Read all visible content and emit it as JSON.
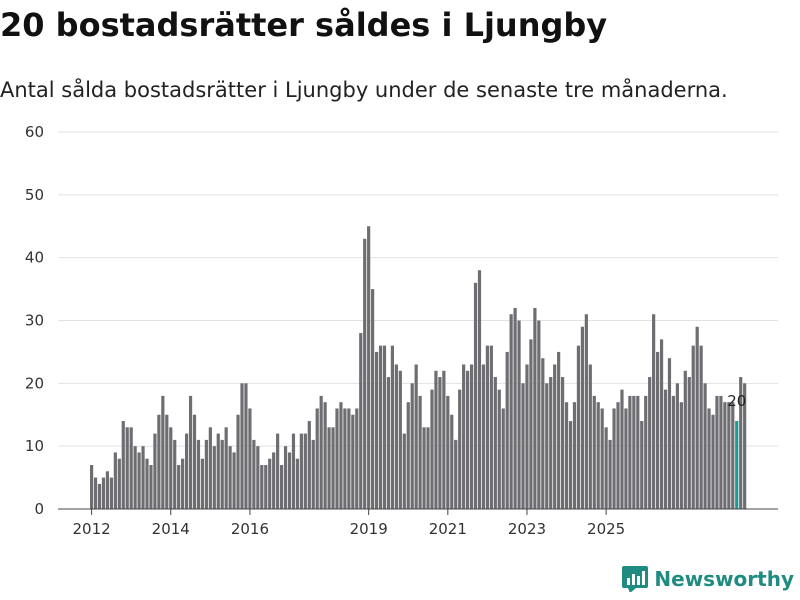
{
  "header": {
    "title": "20 bostadsrätter såldes i Ljungby",
    "subtitle": "Antal sålda bostadsrätter i Ljungby under de senaste tre månaderna."
  },
  "brand": {
    "name": "Newsworthy",
    "icon": "newsworthy-logo-icon"
  },
  "colors": {
    "bar": "#6e6d72",
    "highlight": "#1a9a91",
    "grid": "#e2e2e2",
    "axis": "#444444"
  },
  "chart_data": {
    "type": "bar",
    "title": "20 bostadsrätter såldes i Ljungby",
    "xlabel": "",
    "ylabel": "",
    "ylim": [
      0,
      60
    ],
    "yticks": [
      0,
      10,
      20,
      30,
      40,
      50,
      60
    ],
    "xticks": [
      {
        "label": "2012",
        "index": 0
      },
      {
        "label": "2014",
        "index": 20
      },
      {
        "label": "2016",
        "index": 40
      },
      {
        "label": "2019",
        "index": 70
      },
      {
        "label": "2021",
        "index": 90
      },
      {
        "label": "2023",
        "index": 110
      },
      {
        "label": "2025",
        "index": 130
      }
    ],
    "values": [
      7,
      5,
      4,
      5,
      6,
      5,
      9,
      8,
      14,
      13,
      13,
      10,
      9,
      10,
      8,
      7,
      12,
      15,
      18,
      15,
      13,
      11,
      7,
      8,
      12,
      18,
      15,
      11,
      8,
      11,
      13,
      10,
      12,
      11,
      13,
      10,
      9,
      15,
      20,
      20,
      16,
      11,
      10,
      7,
      7,
      8,
      9,
      12,
      7,
      10,
      9,
      12,
      8,
      12,
      12,
      14,
      11,
      16,
      18,
      17,
      13,
      13,
      16,
      17,
      16,
      16,
      15,
      16,
      28,
      43,
      45,
      35,
      25,
      26,
      26,
      21,
      26,
      23,
      22,
      12,
      17,
      20,
      23,
      18,
      13,
      13,
      19,
      22,
      21,
      22,
      18,
      15,
      11,
      19,
      23,
      22,
      23,
      36,
      38,
      23,
      26,
      26,
      21,
      19,
      16,
      25,
      31,
      32,
      30,
      20,
      23,
      27,
      32,
      30,
      24,
      20,
      21,
      23,
      25,
      21,
      17,
      14,
      17,
      26,
      29,
      31,
      23,
      18,
      17,
      16,
      13,
      11,
      16,
      17,
      19,
      16,
      18,
      18,
      18,
      14,
      18,
      21,
      31,
      25,
      27,
      19,
      24,
      18,
      20,
      17,
      22,
      21,
      26,
      29,
      26,
      20,
      16,
      15,
      18,
      18,
      17,
      17,
      17,
      14,
      21,
      20
    ],
    "annotations": [
      {
        "label": "20",
        "index": 163
      }
    ]
  }
}
